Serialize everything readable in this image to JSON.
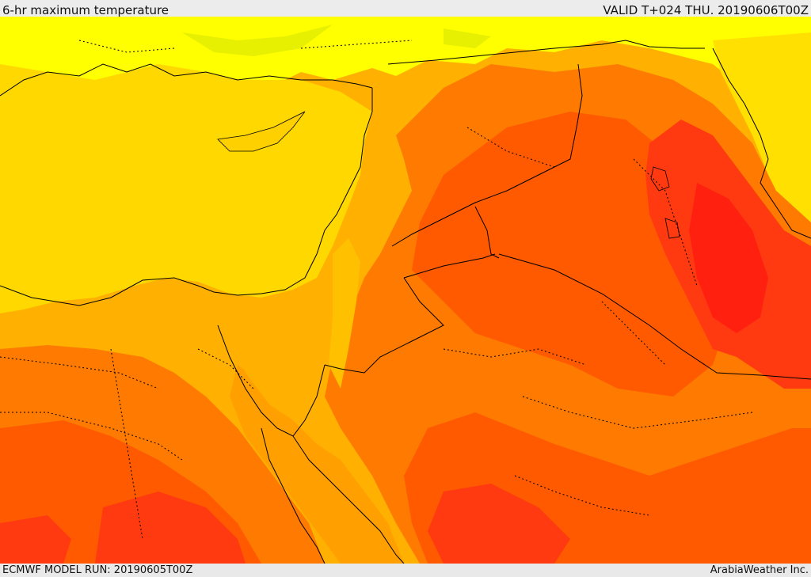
{
  "header": {
    "title": "6-hr maximum temperature",
    "valid": "VALID T+024 THU. 20190606T00Z"
  },
  "footer": {
    "model_run": "ECMWF MODEL RUN: 20190605T00Z",
    "credit": "ArabiaWeather Inc."
  },
  "palette": {
    "light_yellow": "#ffff00",
    "yellow_green": "#e6f000",
    "sea_yellow": "#ffd800",
    "light_orange": "#ffb000",
    "orange": "#ff7a00",
    "deep_orange": "#ff5a00",
    "red_orange": "#ff3a10",
    "red": "#ff2010",
    "border_color": "#000000"
  }
}
